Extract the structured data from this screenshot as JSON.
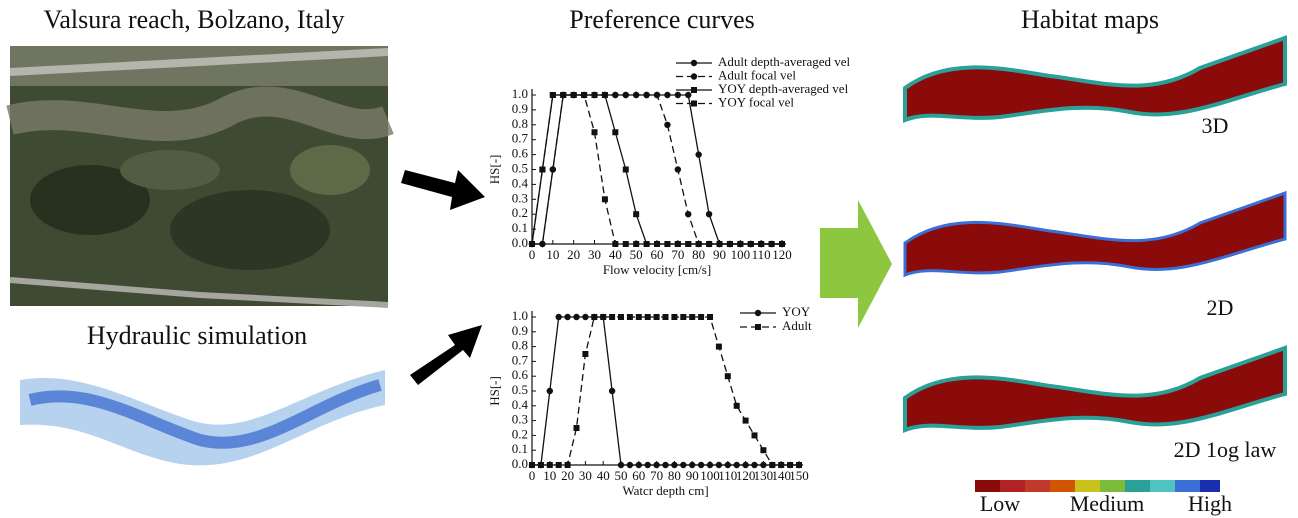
{
  "panels": {
    "photo_title": "Valsura reach, Bolzano, Italy",
    "hydraulic_title": "Hydraulic simulation",
    "curves_title": "Preference curves",
    "maps_title": "Habitat maps",
    "map_labels": [
      "3D",
      "2D",
      "2D 1og law"
    ],
    "colorbar_labels": [
      "Low",
      "Medium",
      "High"
    ]
  },
  "chart_data": [
    {
      "type": "line",
      "x_label": "Flow velocity [cm/s]",
      "y_label": "HS[-]",
      "x": [
        0,
        5,
        10,
        15,
        20,
        25,
        30,
        35,
        40,
        45,
        50,
        55,
        60,
        65,
        70,
        75,
        80,
        85,
        90,
        95,
        100,
        105,
        110,
        115,
        120
      ],
      "xlim": [
        0,
        120
      ],
      "xticks": [
        0,
        10,
        20,
        30,
        40,
        50,
        60,
        70,
        80,
        90,
        100,
        110,
        120
      ],
      "ylim": [
        0,
        1
      ],
      "yticks": [
        {
          "value": 0,
          "label": "0.0"
        },
        0.1,
        0.2,
        0.3,
        0.4,
        0.5,
        0.6,
        0.7,
        0.8,
        0.9,
        {
          "value": 1,
          "label": "1.0"
        }
      ],
      "series": [
        {
          "name": "Adult depth-averaged vel",
          "color": "#111111",
          "line_style": "solid",
          "marker": "circle",
          "values": [
            0,
            0,
            0.5,
            1,
            1,
            1,
            1,
            1,
            1,
            1,
            1,
            1,
            1,
            1,
            1,
            1,
            0.6,
            0.2,
            0,
            0,
            0,
            0,
            0,
            0,
            0
          ]
        },
        {
          "name": "Adult focal vel",
          "color": "#111111",
          "line_style": "dashed",
          "marker": "circle",
          "values": [
            0,
            0,
            0.5,
            1,
            1,
            1,
            1,
            1,
            1,
            1,
            1,
            1,
            1,
            0.8,
            0.5,
            0.2,
            0,
            0,
            0,
            0,
            0,
            0,
            0,
            0,
            0
          ]
        },
        {
          "name": "YOY depth-averaged vel",
          "color": "#111111",
          "line_style": "solid",
          "marker": "square",
          "values": [
            0,
            0.5,
            1,
            1,
            1,
            1,
            1,
            1,
            0.75,
            0.5,
            0.2,
            0,
            0,
            0,
            0,
            0,
            0,
            0,
            0,
            0,
            0,
            0,
            0,
            0,
            0
          ]
        },
        {
          "name": "YOY focal vel",
          "color": "#111111",
          "line_style": "dashed",
          "marker": "square",
          "values": [
            0,
            0.5,
            1,
            1,
            1,
            1,
            0.75,
            0.3,
            0,
            0,
            0,
            0,
            0,
            0,
            0,
            0,
            0,
            0,
            0,
            0,
            0,
            0,
            0,
            0,
            0
          ]
        }
      ]
    },
    {
      "type": "line",
      "x_label": "Watcr depth cm]",
      "y_label": "HS[-]",
      "x": [
        0,
        5,
        10,
        15,
        20,
        25,
        30,
        35,
        40,
        45,
        50,
        55,
        60,
        65,
        70,
        75,
        80,
        85,
        90,
        95,
        100,
        105,
        110,
        115,
        120,
        125,
        130,
        135,
        140,
        145,
        150
      ],
      "xlim": [
        0,
        150
      ],
      "xticks": [
        0,
        10,
        20,
        30,
        40,
        50,
        60,
        70,
        80,
        90,
        100,
        110,
        120,
        130,
        140,
        150
      ],
      "ylim": [
        0,
        1
      ],
      "yticks": [
        {
          "value": 0,
          "label": "0.0"
        },
        0.1,
        0.2,
        0.3,
        0.4,
        0.5,
        0.6,
        0.7,
        0.8,
        0.9,
        {
          "value": 1,
          "label": "1.0"
        }
      ],
      "series": [
        {
          "name": "YOY",
          "color": "#111111",
          "line_style": "solid",
          "marker": "circle",
          "values": [
            0,
            0,
            0.5,
            1,
            1,
            1,
            1,
            1,
            1,
            0.5,
            0,
            0,
            0,
            0,
            0,
            0,
            0,
            0,
            0,
            0,
            0,
            0,
            0,
            0,
            0,
            0,
            0,
            0,
            0,
            0,
            0
          ]
        },
        {
          "name": "Adult",
          "color": "#111111",
          "line_style": "dashed",
          "marker": "square",
          "values": [
            0,
            0,
            0,
            0,
            0,
            0.25,
            0.75,
            1,
            1,
            1,
            1,
            1,
            1,
            1,
            1,
            1,
            1,
            1,
            1,
            1,
            1,
            0.8,
            0.6,
            0.4,
            0.3,
            0.2,
            0.1,
            0,
            0,
            0,
            0
          ]
        }
      ]
    }
  ]
}
